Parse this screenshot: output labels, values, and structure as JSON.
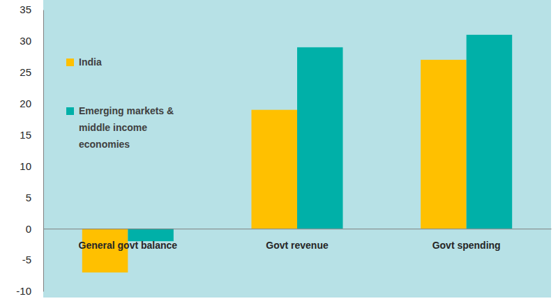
{
  "chart_data": {
    "type": "bar",
    "categories": [
      "General govt balance",
      "Govt revenue",
      "Govt spending"
    ],
    "series": [
      {
        "name": "India",
        "color": "#ffc000",
        "values": [
          -7,
          19,
          27
        ]
      },
      {
        "name": "Emerging markets & middle income economies",
        "color": "#00b0a8",
        "values": [
          -2,
          29,
          31
        ]
      }
    ],
    "ylim": [
      -10,
      35
    ],
    "yticks": [
      -10,
      -5,
      0,
      5,
      10,
      15,
      20,
      25,
      30,
      35
    ],
    "grid": false,
    "legend": "upper left"
  }
}
